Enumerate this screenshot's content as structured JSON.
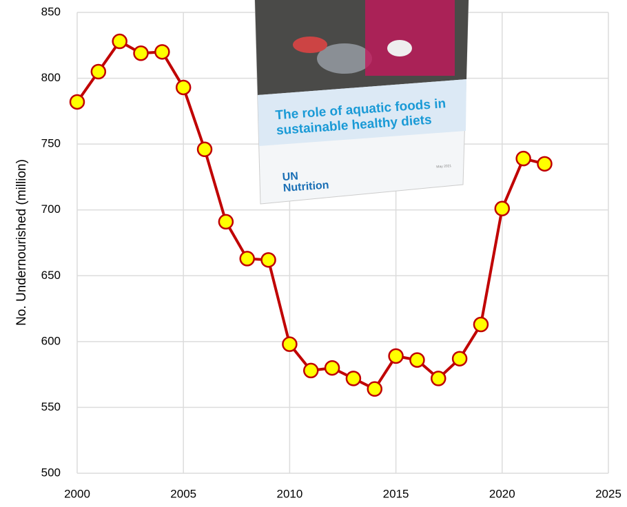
{
  "chart_data": {
    "type": "line",
    "y_label": "No. Undernourished (million)",
    "x": [
      2000,
      2001,
      2002,
      2003,
      2004,
      2005,
      2006,
      2007,
      2008,
      2009,
      2010,
      2011,
      2012,
      2013,
      2014,
      2015,
      2016,
      2017,
      2018,
      2019,
      2020,
      2021,
      2022
    ],
    "series": [
      {
        "color": "#c00000",
        "marker_color": "#ffff00",
        "values": [
          782,
          805,
          828,
          819,
          820,
          793,
          746,
          691,
          663,
          662,
          598,
          578,
          580,
          572,
          564,
          589,
          586,
          572,
          587,
          613,
          701,
          739,
          735
        ]
      }
    ],
    "xlim": [
      2000,
      2025
    ],
    "xticks": [
      2000,
      2005,
      2010,
      2015,
      2020,
      2025
    ],
    "ylim": [
      500,
      850
    ],
    "yticks": [
      500,
      550,
      600,
      650,
      700,
      750,
      800,
      850
    ],
    "grid": true,
    "inset": {
      "title_lines": [
        "The role of aquatic foods in",
        "sustainable  healthy  diets"
      ],
      "logo_lines": [
        "UN",
        "Nutrition"
      ],
      "date": "May 2021"
    }
  }
}
